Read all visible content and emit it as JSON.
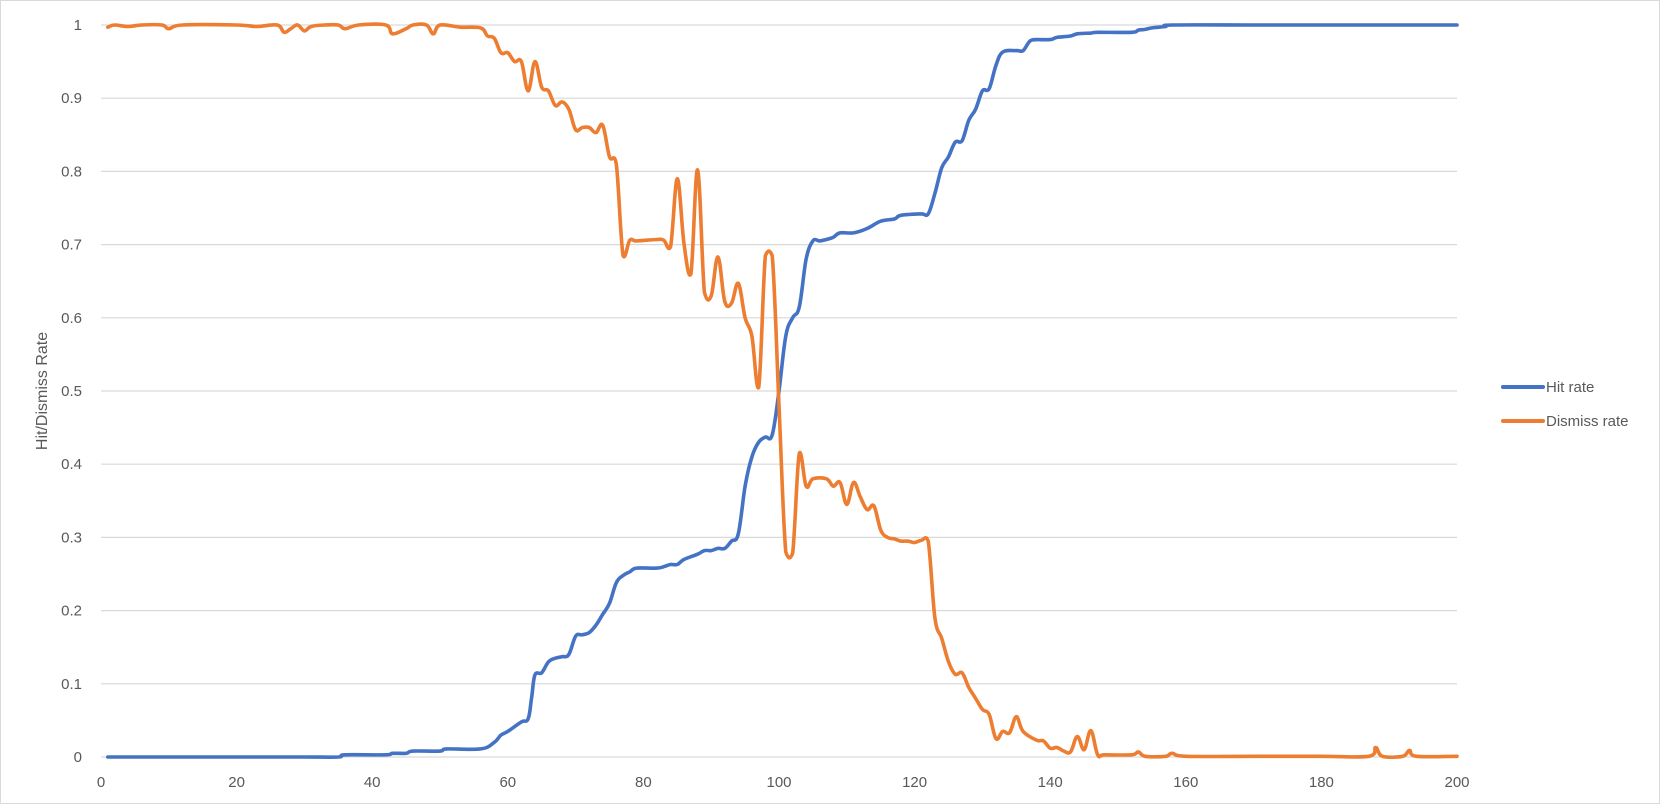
{
  "chart_data": {
    "type": "line",
    "title": "",
    "xlabel": "",
    "ylabel": "Hit/Dismiss Rate",
    "xlim": [
      0,
      200
    ],
    "ylim": [
      0,
      1
    ],
    "x_ticks": [
      "0",
      "20",
      "40",
      "60",
      "80",
      "100",
      "120",
      "140",
      "160",
      "180",
      "200"
    ],
    "y_ticks": [
      "0",
      "0.1",
      "0.2",
      "0.3",
      "0.4",
      "0.5",
      "0.6",
      "0.7",
      "0.8",
      "0.9",
      "1"
    ],
    "grid": "horizontal",
    "legend": "right",
    "series": [
      {
        "name": "Hit rate",
        "color": "#4472c4",
        "points": [
          [
            1,
            0
          ],
          [
            10,
            0
          ],
          [
            20,
            0
          ],
          [
            30,
            0
          ],
          [
            35,
            0
          ],
          [
            36,
            0.003
          ],
          [
            42,
            0.003
          ],
          [
            43,
            0.005
          ],
          [
            45,
            0.005
          ],
          [
            46,
            0.008
          ],
          [
            50,
            0.008
          ],
          [
            51,
            0.011
          ],
          [
            56,
            0.011
          ],
          [
            58,
            0.02
          ],
          [
            59,
            0.03
          ],
          [
            60,
            0.035
          ],
          [
            62,
            0.048
          ],
          [
            63,
            0.052
          ],
          [
            63.5,
            0.08
          ],
          [
            64,
            0.112
          ],
          [
            65,
            0.115
          ],
          [
            66,
            0.13
          ],
          [
            67,
            0.135
          ],
          [
            68,
            0.137
          ],
          [
            69,
            0.14
          ],
          [
            70,
            0.165
          ],
          [
            71,
            0.167
          ],
          [
            72,
            0.17
          ],
          [
            73,
            0.18
          ],
          [
            74,
            0.195
          ],
          [
            75,
            0.21
          ],
          [
            76,
            0.238
          ],
          [
            77,
            0.248
          ],
          [
            78,
            0.253
          ],
          [
            79,
            0.258
          ],
          [
            82,
            0.258
          ],
          [
            83,
            0.26
          ],
          [
            84,
            0.263
          ],
          [
            85,
            0.263
          ],
          [
            86,
            0.27
          ],
          [
            88,
            0.277
          ],
          [
            89,
            0.282
          ],
          [
            90,
            0.282
          ],
          [
            91,
            0.285
          ],
          [
            92,
            0.285
          ],
          [
            93,
            0.295
          ],
          [
            94,
            0.305
          ],
          [
            95,
            0.37
          ],
          [
            96,
            0.41
          ],
          [
            97,
            0.43
          ],
          [
            98,
            0.437
          ],
          [
            99,
            0.44
          ],
          [
            100,
            0.5
          ],
          [
            101,
            0.575
          ],
          [
            102,
            0.6
          ],
          [
            103,
            0.615
          ],
          [
            104,
            0.68
          ],
          [
            105,
            0.705
          ],
          [
            106,
            0.705
          ],
          [
            107,
            0.707
          ],
          [
            108,
            0.71
          ],
          [
            109,
            0.716
          ],
          [
            111,
            0.716
          ],
          [
            113,
            0.722
          ],
          [
            115,
            0.732
          ],
          [
            117,
            0.735
          ],
          [
            118,
            0.74
          ],
          [
            121,
            0.742
          ],
          [
            122,
            0.742
          ],
          [
            123,
            0.77
          ],
          [
            124,
            0.805
          ],
          [
            125,
            0.82
          ],
          [
            126,
            0.84
          ],
          [
            127,
            0.842
          ],
          [
            128,
            0.87
          ],
          [
            129,
            0.885
          ],
          [
            130,
            0.91
          ],
          [
            131,
            0.913
          ],
          [
            132,
            0.945
          ],
          [
            133,
            0.963
          ],
          [
            135,
            0.965
          ],
          [
            136,
            0.965
          ],
          [
            137,
            0.978
          ],
          [
            138,
            0.98
          ],
          [
            140,
            0.98
          ],
          [
            141,
            0.983
          ],
          [
            143,
            0.985
          ],
          [
            144,
            0.988
          ],
          [
            146,
            0.989
          ],
          [
            147,
            0.99
          ],
          [
            152,
            0.99
          ],
          [
            153,
            0.993
          ],
          [
            154,
            0.994
          ],
          [
            155,
            0.996
          ],
          [
            157,
            0.998
          ],
          [
            158,
            1
          ],
          [
            170,
            1
          ],
          [
            180,
            1
          ],
          [
            190,
            1
          ],
          [
            200,
            1
          ]
        ]
      },
      {
        "name": "Dismiss rate",
        "color": "#ed7d31",
        "points": [
          [
            1,
            0.997
          ],
          [
            2,
            1
          ],
          [
            4,
            0.998
          ],
          [
            6,
            1
          ],
          [
            9,
            1
          ],
          [
            10,
            0.995
          ],
          [
            12,
            1
          ],
          [
            20,
            1
          ],
          [
            23,
            0.998
          ],
          [
            26,
            1
          ],
          [
            27,
            0.99
          ],
          [
            28,
            0.995
          ],
          [
            29,
            1
          ],
          [
            30,
            0.992
          ],
          [
            31,
            0.998
          ],
          [
            33,
            1
          ],
          [
            35,
            1
          ],
          [
            36,
            0.995
          ],
          [
            38,
            1
          ],
          [
            42,
            1
          ],
          [
            43,
            0.988
          ],
          [
            45,
            0.995
          ],
          [
            46,
            1
          ],
          [
            48,
            1
          ],
          [
            49,
            0.988
          ],
          [
            50,
            1
          ],
          [
            53,
            0.997
          ],
          [
            56,
            0.996
          ],
          [
            57,
            0.985
          ],
          [
            58,
            0.982
          ],
          [
            59,
            0.962
          ],
          [
            60,
            0.962
          ],
          [
            61,
            0.95
          ],
          [
            62,
            0.95
          ],
          [
            63,
            0.91
          ],
          [
            64,
            0.95
          ],
          [
            65,
            0.915
          ],
          [
            66,
            0.91
          ],
          [
            67,
            0.89
          ],
          [
            68,
            0.895
          ],
          [
            69,
            0.885
          ],
          [
            70,
            0.857
          ],
          [
            71,
            0.86
          ],
          [
            72,
            0.86
          ],
          [
            73,
            0.853
          ],
          [
            74,
            0.863
          ],
          [
            75,
            0.82
          ],
          [
            76,
            0.81
          ],
          [
            77,
            0.685
          ],
          [
            78,
            0.706
          ],
          [
            79,
            0.705
          ],
          [
            82,
            0.707
          ],
          [
            83,
            0.706
          ],
          [
            84,
            0.697
          ],
          [
            85,
            0.79
          ],
          [
            86,
            0.7
          ],
          [
            87,
            0.66
          ],
          [
            88,
            0.802
          ],
          [
            89,
            0.635
          ],
          [
            90,
            0.63
          ],
          [
            91,
            0.683
          ],
          [
            92,
            0.622
          ],
          [
            93,
            0.62
          ],
          [
            94,
            0.647
          ],
          [
            95,
            0.6
          ],
          [
            96,
            0.575
          ],
          [
            97,
            0.505
          ],
          [
            98,
            0.685
          ],
          [
            99,
            0.685
          ],
          [
            100,
            0.48
          ],
          [
            101,
            0.28
          ],
          [
            102,
            0.278
          ],
          [
            103,
            0.415
          ],
          [
            104,
            0.37
          ],
          [
            105,
            0.38
          ],
          [
            107,
            0.38
          ],
          [
            108,
            0.37
          ],
          [
            109,
            0.375
          ],
          [
            110,
            0.345
          ],
          [
            111,
            0.375
          ],
          [
            112,
            0.355
          ],
          [
            113,
            0.338
          ],
          [
            114,
            0.343
          ],
          [
            115,
            0.31
          ],
          [
            116,
            0.3
          ],
          [
            117,
            0.298
          ],
          [
            118,
            0.295
          ],
          [
            119,
            0.295
          ],
          [
            120,
            0.293
          ],
          [
            121,
            0.296
          ],
          [
            122,
            0.295
          ],
          [
            123,
            0.19
          ],
          [
            124,
            0.162
          ],
          [
            125,
            0.13
          ],
          [
            126,
            0.113
          ],
          [
            127,
            0.115
          ],
          [
            128,
            0.095
          ],
          [
            129,
            0.08
          ],
          [
            130,
            0.065
          ],
          [
            131,
            0.058
          ],
          [
            132,
            0.025
          ],
          [
            133,
            0.035
          ],
          [
            134,
            0.033
          ],
          [
            135,
            0.055
          ],
          [
            136,
            0.035
          ],
          [
            138,
            0.023
          ],
          [
            139,
            0.022
          ],
          [
            140,
            0.012
          ],
          [
            141,
            0.013
          ],
          [
            142,
            0.008
          ],
          [
            143,
            0.007
          ],
          [
            144,
            0.028
          ],
          [
            145,
            0.01
          ],
          [
            146,
            0.036
          ],
          [
            147,
            0.003
          ],
          [
            148,
            0.003
          ],
          [
            152,
            0.003
          ],
          [
            153,
            0.007
          ],
          [
            154,
            0.001
          ],
          [
            157,
            0.001
          ],
          [
            158,
            0.005
          ],
          [
            160,
            0.001
          ],
          [
            170,
            0.001
          ],
          [
            180,
            0.001
          ],
          [
            187,
            0.001
          ],
          [
            188,
            0.013
          ],
          [
            189,
            0.001
          ],
          [
            192,
            0.001
          ],
          [
            193,
            0.009
          ],
          [
            194,
            0.001
          ],
          [
            200,
            0.001
          ]
        ]
      }
    ]
  }
}
